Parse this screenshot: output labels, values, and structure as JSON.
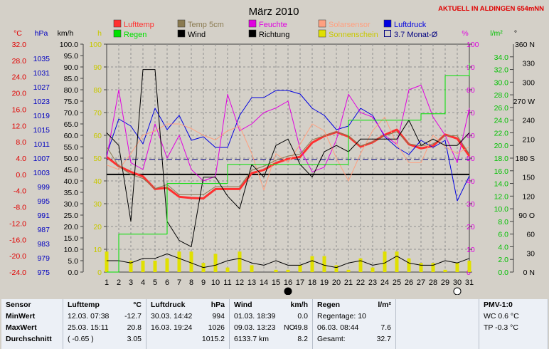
{
  "title": "März 2010",
  "station": "AKTUELL IN ALDINGEN 654mNN",
  "legend": [
    {
      "label": "Lufttemp",
      "color": "#ff3030",
      "style": "fill"
    },
    {
      "label": "Regen",
      "color": "#00e000",
      "style": "fill"
    },
    {
      "label": "Temp 5cm",
      "color": "#8a7a50",
      "style": "fill"
    },
    {
      "label": "Wind",
      "color": "#000000",
      "style": "fill"
    },
    {
      "label": "Feuchte",
      "color": "#e000e0",
      "style": "fill"
    },
    {
      "label": "Richtung",
      "color": "#000000",
      "style": "fill"
    },
    {
      "label": "Solarsensor",
      "color": "#ffa080",
      "style": "fill"
    },
    {
      "label": "Sonnenschein",
      "color": "#e0e000",
      "style": "fill"
    },
    {
      "label": "Luftdruck",
      "color": "#0000e0",
      "style": "fill"
    },
    {
      "label": "3.7 Monat-Ø",
      "color": "#000080",
      "style": "box"
    }
  ],
  "axis_units": {
    "temp": "°C",
    "pressure": "hPa",
    "wind": "km/h",
    "sun": "h",
    "humidity": "%",
    "rain": "l/m²",
    "direction": "°"
  },
  "stats": {
    "sensor": {
      "header": "Sensor",
      "rows": [
        "MinWert",
        "MaxWert",
        "Durchschnitt"
      ]
    },
    "lufttemp": {
      "header": "Lufttemp",
      "unit": "°C",
      "rows": [
        [
          "12.03.  07:38",
          "-12.7"
        ],
        [
          "25.03.  15:11",
          "20.8"
        ],
        [
          "( -0.65 )",
          "3.05"
        ]
      ]
    },
    "luftdruck": {
      "header": "Luftdruck",
      "unit": "hPa",
      "rows": [
        [
          "30.03.  14:42",
          "994"
        ],
        [
          "16.03.  19:24",
          "1026"
        ],
        [
          "",
          "1015.2"
        ]
      ]
    },
    "wind": {
      "header": "Wind",
      "unit": "km/h",
      "rows": [
        [
          "01.03.  18:39",
          "",
          "0.0"
        ],
        [
          "09.03.  13:23",
          "NO",
          "49.8"
        ],
        [
          "6133.7 km",
          "",
          "8.2"
        ]
      ]
    },
    "regen": {
      "header": "Regen",
      "unit": "l/m²",
      "rows": [
        [
          "Regentage: 10",
          ""
        ],
        [
          "06.03.   08:44",
          "7.6"
        ],
        [
          "Gesamt:",
          "32.7"
        ]
      ]
    },
    "pmv": {
      "header": "PMV-1:0",
      "rows": [
        "WC 0.6 °C",
        "TP -0.3 °C"
      ]
    }
  },
  "chart_data": {
    "type": "line",
    "title": "März 2010",
    "x": [
      1,
      2,
      3,
      4,
      5,
      6,
      7,
      8,
      9,
      10,
      11,
      12,
      13,
      14,
      15,
      16,
      17,
      18,
      19,
      20,
      21,
      22,
      23,
      24,
      25,
      26,
      27,
      28,
      29,
      30,
      31
    ],
    "xlim": [
      1,
      31
    ],
    "axes": {
      "temp": {
        "label": "°C",
        "min": -24,
        "max": 32,
        "ticks": [
          32,
          28,
          24,
          20,
          16,
          12,
          8,
          4,
          0,
          -4,
          -8,
          -12,
          -16,
          -20,
          -24
        ],
        "color": "#e00000"
      },
      "pressure": {
        "label": "hPa",
        "min": 975,
        "max": 1039,
        "ticks": [
          1035,
          1031,
          1027,
          1023,
          1019,
          1015,
          1011,
          1007,
          1003,
          999,
          995,
          991,
          987,
          983,
          979,
          975
        ],
        "color": "#0000c0"
      },
      "wind": {
        "label": "km/h",
        "min": 0,
        "max": 100,
        "ticks": [
          100,
          95,
          90,
          85,
          80,
          75,
          70,
          65,
          60,
          55,
          50,
          45,
          40,
          35,
          30,
          25,
          20,
          15,
          10,
          5,
          0
        ],
        "color": "#000000"
      },
      "sun": {
        "label": "h",
        "min": 0,
        "max": 100,
        "ticks": [
          100,
          90,
          80,
          70,
          60,
          50,
          40,
          30,
          20,
          10,
          0
        ],
        "color": "#c8c800"
      },
      "humidity": {
        "label": "%",
        "min": 0,
        "max": 100,
        "ticks": [
          100,
          90,
          80,
          70,
          60,
          50,
          40,
          30,
          20,
          10,
          0
        ],
        "color": "#e000e0"
      },
      "rain": {
        "label": "l/m²",
        "min": 0,
        "max": 36,
        "ticks": [
          34,
          32,
          30,
          28,
          26,
          24,
          22,
          20,
          18,
          16,
          14,
          12,
          10,
          8,
          6,
          4,
          2,
          0
        ],
        "color": "#00c000"
      },
      "direction": {
        "label": "°",
        "min": 0,
        "max": 360,
        "ticks": [
          360,
          330,
          300,
          270,
          240,
          210,
          180,
          150,
          120,
          90,
          60,
          30,
          0
        ],
        "tick_labels": [
          "360 N",
          "330",
          "300",
          "270 W",
          "240",
          "210",
          "180 S",
          "150",
          "120",
          "90 O",
          "60",
          "30",
          "0 N"
        ]
      }
    },
    "series": [
      {
        "name": "Lufttemp",
        "axis": "temp",
        "color": "#ff3030",
        "width": 3,
        "values": [
          4.3,
          2,
          0.6,
          -0.5,
          -3.6,
          -3.3,
          -5.5,
          -5.8,
          -5.9,
          -3.6,
          -3.6,
          -3.6,
          0.3,
          1.1,
          2.8,
          3.8,
          4.3,
          7.8,
          9.4,
          10.4,
          9.3,
          6.8,
          7.9,
          9.7,
          11,
          7.4,
          6.4,
          7,
          9.8,
          8.8,
          4.5
        ]
      },
      {
        "name": "Luftdruck",
        "axis": "pressure",
        "color": "#0000e0",
        "width": 1,
        "values": [
          1008,
          1018,
          1016,
          1011,
          1021,
          1015,
          1019,
          1012,
          1013,
          1010,
          1010,
          1019,
          1024,
          1024,
          1026,
          1026,
          1025,
          1021,
          1019,
          1015,
          1016,
          1021,
          1019,
          1013,
          1010,
          1008,
          1012,
          1010,
          1012,
          995,
          1002
        ]
      },
      {
        "name": "Feuchte",
        "axis": "humidity",
        "color": "#e000e0",
        "width": 1,
        "values": [
          50,
          80,
          48,
          45,
          65,
          50,
          60,
          45,
          40,
          42,
          78,
          62,
          65,
          70,
          72,
          75,
          54,
          44,
          46,
          58,
          78,
          70,
          68,
          60,
          56,
          80,
          82,
          68,
          60,
          48,
          72
        ]
      },
      {
        "name": "Solarsensor",
        "axis": "humidity",
        "color": "#ffa080",
        "width": 1,
        "values": [
          47,
          45,
          52,
          60,
          62,
          65,
          65,
          63,
          60,
          58,
          62,
          64,
          52,
          36,
          52,
          48,
          56,
          65,
          62,
          50,
          40,
          52,
          62,
          68,
          56,
          48,
          48,
          60,
          55,
          52,
          55
        ]
      },
      {
        "name": "Temp 5cm",
        "axis": "temp",
        "color": "#8a7a50",
        "width": 1,
        "values": [
          6.8,
          2,
          0,
          -1,
          -3.5,
          -2.5,
          -5,
          -5,
          -5,
          -3,
          -3,
          -3,
          1,
          2,
          3.5,
          4.5,
          5,
          8.5,
          9.5,
          10.5,
          9.5,
          7,
          8,
          9.5,
          10.5,
          7.5,
          7,
          7.5,
          9.5,
          9.5,
          5
        ]
      },
      {
        "name": "Richtung",
        "axis": "direction",
        "color": "#000000",
        "width": 1,
        "values": [
          220,
          200,
          80,
          320,
          320,
          80,
          50,
          40,
          150,
          150,
          120,
          100,
          170,
          150,
          200,
          210,
          170,
          150,
          190,
          200,
          190,
          210,
          210,
          210,
          210,
          240,
          200,
          210,
          200,
          200,
          220
        ]
      },
      {
        "name": "Wind",
        "axis": "wind",
        "color": "#000000",
        "width": 1,
        "values": [
          5,
          5,
          4,
          6,
          6,
          8,
          6,
          4,
          2,
          3,
          5,
          6,
          4,
          3,
          5,
          3,
          3,
          5,
          3,
          2,
          4,
          5,
          3,
          4,
          7,
          4,
          3,
          3,
          5,
          4,
          6
        ]
      },
      {
        "name": "Regen",
        "axis": "rain",
        "color": "#00e000",
        "width": 1,
        "step": true,
        "values": [
          0,
          6,
          6,
          6,
          6,
          14,
          14,
          14,
          14,
          14,
          17,
          17,
          17,
          17,
          17,
          17,
          17,
          17,
          17,
          17,
          24,
          24,
          24,
          24,
          24,
          24,
          25,
          25,
          31,
          31,
          33
        ]
      }
    ],
    "bars": {
      "name": "Sonnenschein",
      "axis": "sun",
      "color": "#e0e000",
      "values": [
        9,
        0,
        5,
        5,
        5,
        6,
        9,
        9,
        4,
        8,
        2,
        9,
        3,
        0,
        1,
        1,
        3,
        7,
        7,
        3,
        1,
        6,
        2,
        9,
        9,
        6,
        4,
        4,
        1,
        4,
        5
      ]
    },
    "reference_lines": [
      {
        "name": "3.7 Monat-Ø",
        "axis": "temp",
        "value": 3.7,
        "color": "#000080",
        "dash": true
      },
      {
        "axis": "temp",
        "value": 0,
        "color": "#000000",
        "dash": false
      }
    ],
    "markers": [
      {
        "x": 16,
        "type": "full-moon",
        "color": "#000000"
      },
      {
        "x": 30,
        "type": "new-moon",
        "color": "#ffffff"
      }
    ],
    "grid": true
  }
}
